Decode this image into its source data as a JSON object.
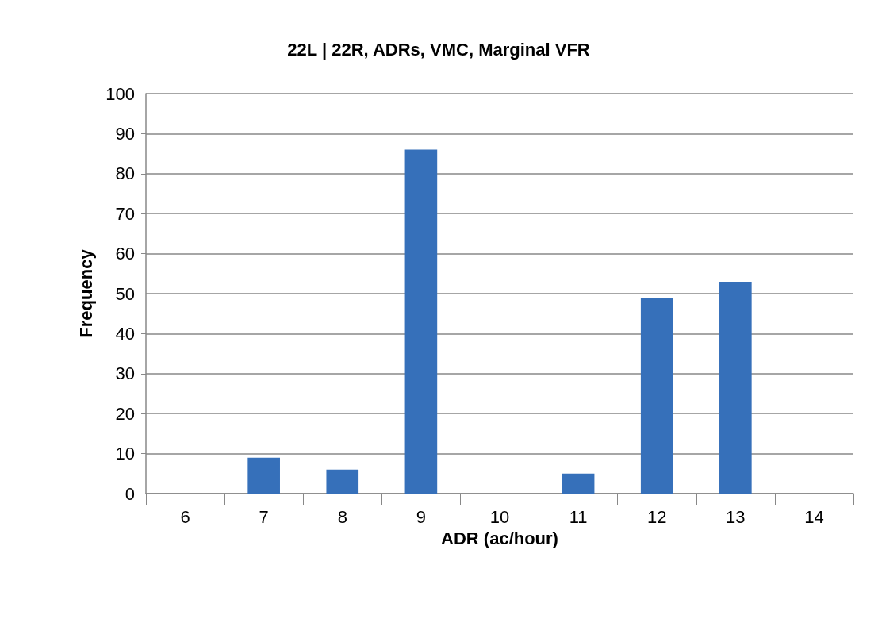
{
  "chart_data": {
    "type": "bar",
    "title": "22L | 22R, ADRs, VMC, Marginal VFR",
    "xlabel": "ADR (ac/hour)",
    "ylabel": "Frequency",
    "categories": [
      "6",
      "7",
      "8",
      "9",
      "10",
      "11",
      "12",
      "13",
      "14"
    ],
    "values": [
      0,
      9,
      6,
      86,
      0,
      5,
      49,
      53,
      0
    ],
    "color": "#3670ba",
    "ylim": [
      0,
      100
    ],
    "yticks": [
      0,
      10,
      20,
      30,
      40,
      50,
      60,
      70,
      80,
      90,
      100
    ],
    "grid": "y"
  }
}
